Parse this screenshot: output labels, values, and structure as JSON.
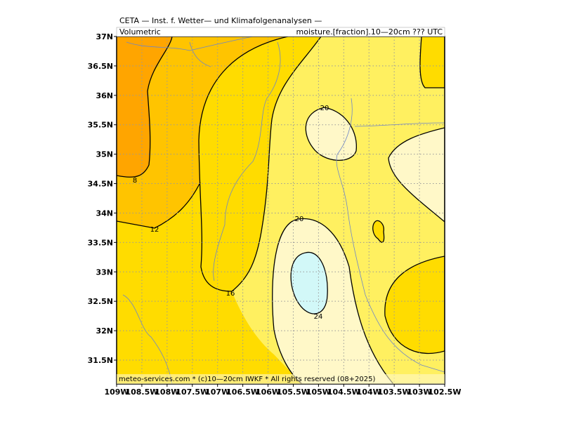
{
  "header": {
    "line1": "CETA — Inst. f. Wetter— und Klimafolgenanalysen —",
    "left": "Volumetric",
    "right": "moisture.[fraction].10—20cm ??? UTC"
  },
  "axes": {
    "lat_ticks": [
      "37N",
      "36.5N",
      "36N",
      "35.5N",
      "35N",
      "34.5N",
      "34N",
      "33.5N",
      "33N",
      "32.5N",
      "32N",
      "31.5N"
    ],
    "lon_ticks": [
      "109W",
      "108.5W",
      "108W",
      "107.5W",
      "107W",
      "106.5W",
      "106W",
      "105.5W",
      "105W",
      "104.5W",
      "104W",
      "103.5W",
      "103W",
      "102.5W"
    ]
  },
  "contour_labels": [
    8,
    12,
    16,
    20,
    20,
    24
  ],
  "footer": "meteo-services.com * (c)10—20cm IWKF * All rights reserved (08+2025)"
}
